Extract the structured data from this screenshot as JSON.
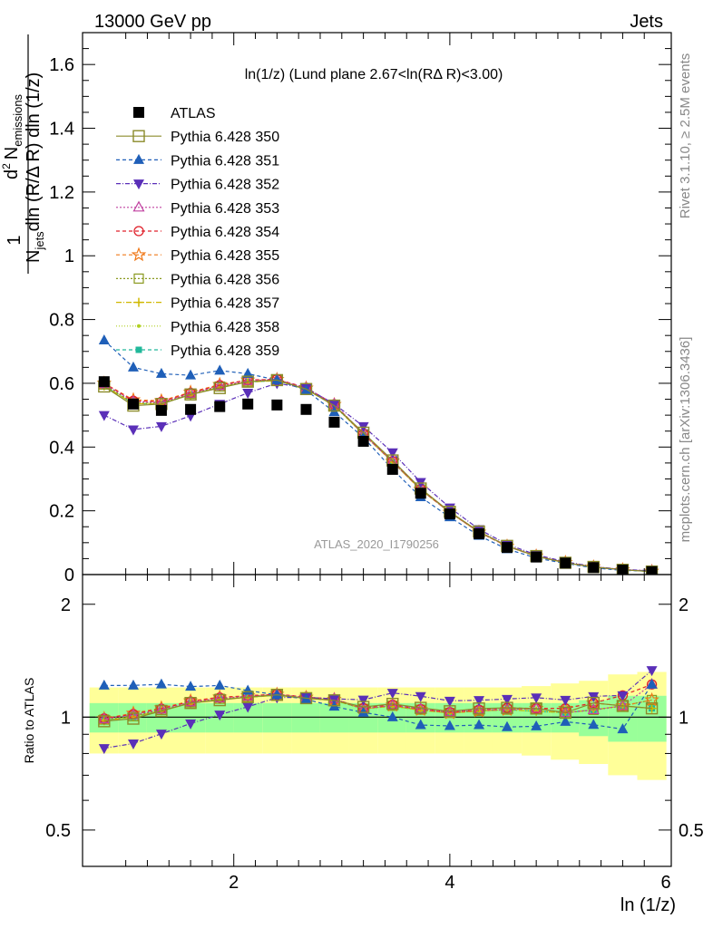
{
  "header": {
    "left": "13000 GeV pp",
    "right": "Jets"
  },
  "side_text": {
    "rivet": "Rivet 3.1.10, ≥ 2.5M events",
    "mcplots": "mcplots.cern.ch [arXiv:1306.3436]"
  },
  "chart_data": {
    "type": "scatter",
    "title": "ln(1/z) (Lund plane 2.67<ln(RΔ R)<3.00)",
    "watermark": "ATLAS_2020_I1790256",
    "xlabel": "ln (1/z)",
    "ylabel_main": "1/N_jets d²N_emissions / dln(R/ΔR) dln(1/z)",
    "ylabel_main_parts": {
      "num": "1",
      "den": "N",
      "den_sub": "jets",
      "d2": "d",
      "d2_sup": "2",
      "nem": "N",
      "nem_sub": "emissions",
      "rest": "dln (R/Δ R) dln (1/z)"
    },
    "ylabel_ratio": "Ratio to ATLAS",
    "xlim": [
      0.6,
      6.05
    ],
    "ylim_main": [
      0,
      1.7
    ],
    "ylim_ratio": [
      0.4,
      2.4
    ],
    "log_ratio": true,
    "x_ticks": [
      "2",
      "4",
      "6"
    ],
    "y_ticks_main": [
      "0",
      "0.2",
      "0.4",
      "0.6",
      "0.8",
      "1",
      "1.2",
      "1.4",
      "1.6"
    ],
    "y_ticks_ratio": [
      "0.5",
      "1",
      "2"
    ],
    "x": [
      0.8,
      1.07,
      1.33,
      1.6,
      1.87,
      2.13,
      2.4,
      2.67,
      2.93,
      3.2,
      3.47,
      3.73,
      4.0,
      4.27,
      4.53,
      4.8,
      5.07,
      5.33,
      5.6,
      5.87
    ],
    "atlas": {
      "name": "ATLAS",
      "values": [
        0.605,
        0.535,
        0.515,
        0.518,
        0.527,
        0.535,
        0.532,
        0.518,
        0.478,
        0.418,
        0.33,
        0.255,
        0.19,
        0.128,
        0.085,
        0.055,
        0.036,
        0.022,
        0.014,
        0.009
      ],
      "band_stat": [
        0.09,
        0.09,
        0.09,
        0.09,
        0.09,
        0.09,
        0.09,
        0.09,
        0.09,
        0.09,
        0.09,
        0.09,
        0.09,
        0.09,
        0.09,
        0.09,
        0.09,
        0.11,
        0.14,
        0.14
      ],
      "band_total": [
        0.2,
        0.2,
        0.2,
        0.2,
        0.2,
        0.2,
        0.2,
        0.2,
        0.2,
        0.2,
        0.2,
        0.2,
        0.2,
        0.2,
        0.2,
        0.21,
        0.23,
        0.25,
        0.3,
        0.32
      ]
    },
    "series": [
      {
        "name": "Pythia 6.428 350",
        "color": "#8b8b2b",
        "dash": "",
        "marker": "square-open",
        "values": [
          0.59,
          0.53,
          0.535,
          0.565,
          0.585,
          0.605,
          0.61,
          0.582,
          0.53,
          0.445,
          0.358,
          0.27,
          0.197,
          0.135,
          0.09,
          0.058,
          0.037,
          0.024,
          0.015,
          0.0095
        ]
      },
      {
        "name": "Pythia 6.428 351",
        "color": "#1f5fb8",
        "dash": "4,3",
        "marker": "triangle-up",
        "values": [
          0.735,
          0.65,
          0.63,
          0.625,
          0.64,
          0.63,
          0.61,
          0.578,
          0.51,
          0.43,
          0.33,
          0.243,
          0.18,
          0.122,
          0.08,
          0.052,
          0.035,
          0.021,
          0.013,
          0.011
        ]
      },
      {
        "name": "Pythia 6.428 352",
        "color": "#5a2fb8",
        "dash": "5,2,1,2",
        "marker": "triangle-down",
        "values": [
          0.5,
          0.455,
          0.465,
          0.498,
          0.535,
          0.57,
          0.6,
          0.585,
          0.535,
          0.465,
          0.383,
          0.29,
          0.21,
          0.142,
          0.095,
          0.062,
          0.04,
          0.025,
          0.016,
          0.012
        ]
      },
      {
        "name": "Pythia 6.428 353",
        "color": "#c040a0",
        "dash": "2,2",
        "marker": "triangle-open",
        "values": [
          0.598,
          0.542,
          0.54,
          0.568,
          0.592,
          0.608,
          0.612,
          0.585,
          0.535,
          0.44,
          0.355,
          0.268,
          0.196,
          0.134,
          0.089,
          0.058,
          0.037,
          0.023,
          0.015,
          0.011
        ]
      },
      {
        "name": "Pythia 6.428 354",
        "color": "#e0202a",
        "dash": "4,3",
        "marker": "circle-open",
        "values": [
          0.6,
          0.545,
          0.542,
          0.57,
          0.594,
          0.61,
          0.613,
          0.586,
          0.534,
          0.442,
          0.356,
          0.268,
          0.196,
          0.134,
          0.09,
          0.058,
          0.038,
          0.024,
          0.016,
          0.011
        ]
      },
      {
        "name": "Pythia 6.428 355",
        "color": "#f07818",
        "dash": "4,3",
        "marker": "star-open",
        "values": [
          0.6,
          0.548,
          0.545,
          0.572,
          0.596,
          0.61,
          0.612,
          0.585,
          0.533,
          0.441,
          0.355,
          0.267,
          0.195,
          0.133,
          0.089,
          0.058,
          0.038,
          0.024,
          0.015,
          0.01
        ]
      },
      {
        "name": "Pythia 6.428 356",
        "color": "#8a9a20",
        "dash": "2,2",
        "marker": "square-open-small",
        "values": [
          0.596,
          0.538,
          0.538,
          0.567,
          0.59,
          0.606,
          0.61,
          0.582,
          0.53,
          0.44,
          0.354,
          0.267,
          0.195,
          0.133,
          0.089,
          0.058,
          0.037,
          0.023,
          0.015,
          0.01
        ]
      },
      {
        "name": "Pythia 6.428 357",
        "color": "#d0b800",
        "dash": "6,2,1,2",
        "marker": "cross",
        "values": [
          0.592,
          0.536,
          0.536,
          0.564,
          0.588,
          0.604,
          0.608,
          0.581,
          0.53,
          0.44,
          0.353,
          0.266,
          0.195,
          0.133,
          0.089,
          0.057,
          0.037,
          0.023,
          0.015,
          0.0095
        ]
      },
      {
        "name": "Pythia 6.428 358",
        "color": "#b0d020",
        "dash": "1,2",
        "marker": "dot",
        "values": [
          0.594,
          0.537,
          0.537,
          0.565,
          0.589,
          0.605,
          0.609,
          0.582,
          0.531,
          0.44,
          0.353,
          0.266,
          0.195,
          0.133,
          0.089,
          0.057,
          0.037,
          0.023,
          0.015,
          0.0095
        ]
      },
      {
        "name": "Pythia 6.428 359",
        "color": "#20b89a",
        "dash": "4,3",
        "marker": "square-filled-small",
        "values": [
          0.593,
          0.536,
          0.536,
          0.564,
          0.588,
          0.604,
          0.608,
          0.581,
          0.53,
          0.44,
          0.353,
          0.266,
          0.195,
          0.133,
          0.089,
          0.057,
          0.037,
          0.023,
          0.015,
          0.0095
        ]
      }
    ]
  }
}
